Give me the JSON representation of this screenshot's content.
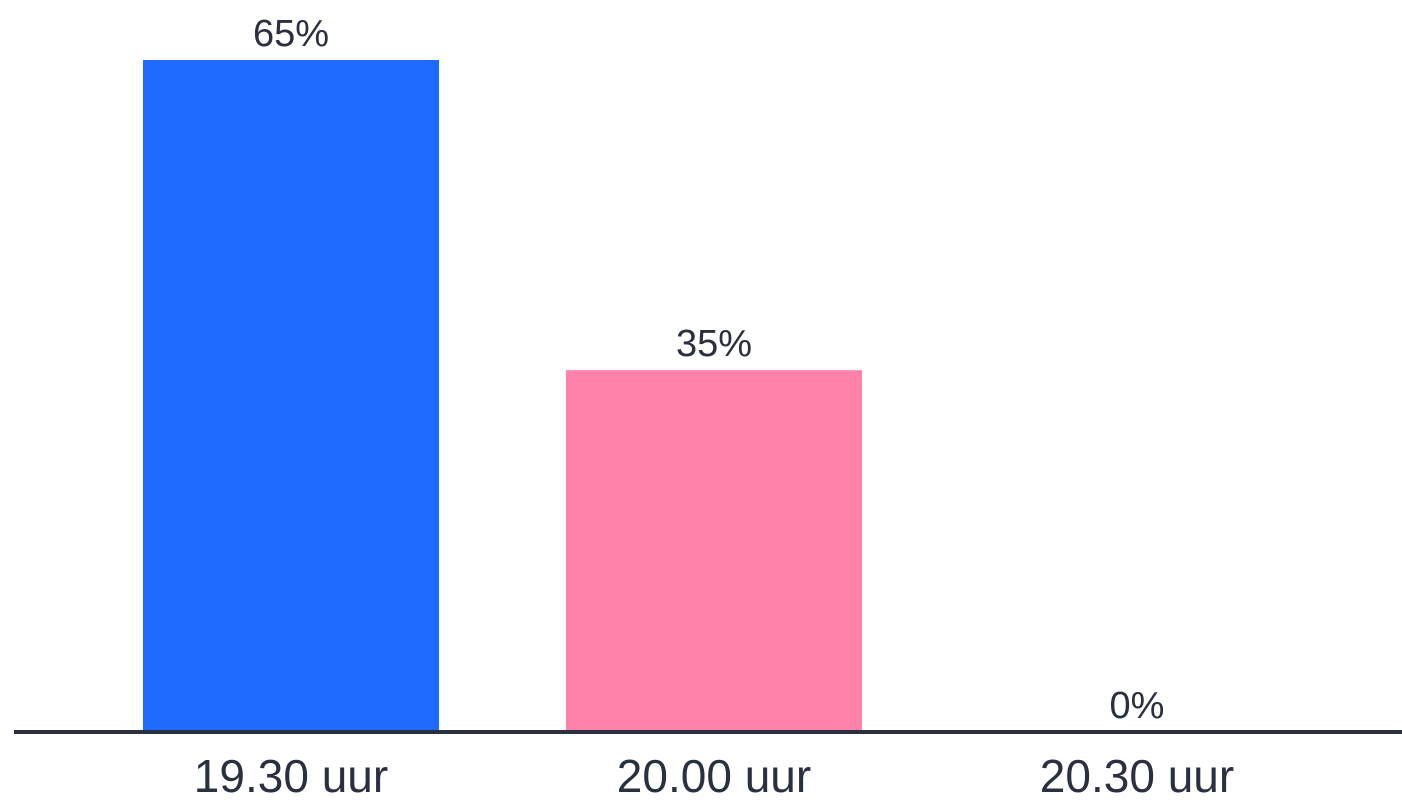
{
  "chart_data": {
    "type": "bar",
    "title": "",
    "xlabel": "",
    "ylabel": "",
    "ylim": [
      0,
      65
    ],
    "grid": false,
    "legend": "none",
    "categories": [
      "19.30 uur",
      "20.00 uur",
      "20.30 uur"
    ],
    "values": [
      65,
      35,
      0
    ],
    "value_labels": [
      "65%",
      "35%",
      "0%"
    ],
    "colors": [
      "#1f6bff",
      "#ff82aa",
      "#4a90e2"
    ],
    "axis_color": "#2b3040",
    "text_color": "#2b3040"
  }
}
